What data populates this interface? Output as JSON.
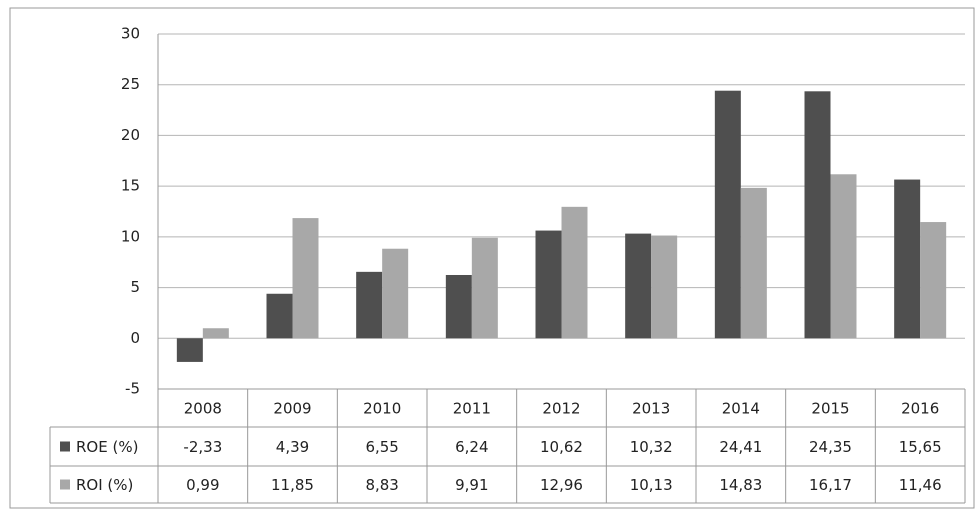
{
  "chart_data": {
    "type": "bar",
    "categories": [
      "2008",
      "2009",
      "2010",
      "2011",
      "2012",
      "2013",
      "2014",
      "2015",
      "2016"
    ],
    "series": [
      {
        "name": "ROE (%)",
        "color": "#4f4f4f",
        "values": [
          -2.33,
          4.39,
          6.55,
          6.24,
          10.62,
          10.32,
          24.41,
          24.35,
          15.65
        ],
        "value_labels": [
          "-2,33",
          "4,39",
          "6,55",
          "6,24",
          "10,62",
          "10,32",
          "24,41",
          "24,35",
          "15,65"
        ]
      },
      {
        "name": "ROI (%)",
        "color": "#a8a8a8",
        "values": [
          0.99,
          11.85,
          8.83,
          9.91,
          12.96,
          10.13,
          14.83,
          16.17,
          11.46
        ],
        "value_labels": [
          "0,99",
          "11,85",
          "8,83",
          "9,91",
          "12,96",
          "10,13",
          "14,83",
          "16,17",
          "11,46"
        ]
      }
    ],
    "ylim": [
      -5,
      30
    ],
    "yticks": [
      -5,
      0,
      5,
      10,
      15,
      20,
      25,
      30
    ],
    "grid": true
  }
}
